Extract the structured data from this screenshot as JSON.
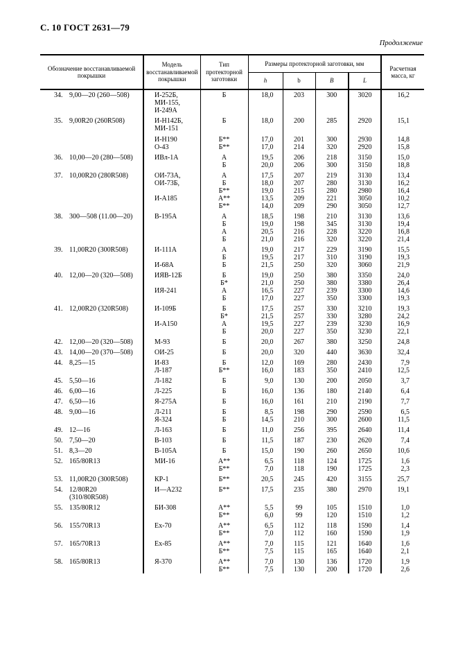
{
  "page": {
    "header": "С. 10 ГОСТ 2631—79",
    "continuation": "Продолжение"
  },
  "table": {
    "header": {
      "designation": "Обозначение восстанавливаемой покрышки",
      "model": "Модель восстанавливаемой покрышки",
      "type": "Тип протекторной заготовки",
      "dimensions": "Размеры протекторной заготовки, мм",
      "dim_h": "h",
      "dim_b": "b",
      "dim_B": "B",
      "dim_L": "L",
      "mass": "Расчетная масса, кг"
    },
    "items": [
      {
        "num": "34.",
        "designation": [
          "9,00—20 (260—508)"
        ],
        "lines": [
          [
            "И-252Б,",
            "Б",
            "18,0",
            "203",
            "300",
            "3020",
            "16,2"
          ],
          [
            "МИ-155,",
            "",
            "",
            "",
            "",
            "",
            ""
          ],
          [
            "И-249А",
            "",
            "",
            "",
            "",
            "",
            ""
          ]
        ]
      },
      {
        "num": "35.",
        "designation": [
          "9,00R20 (260R508)"
        ],
        "gap_lines": [
          2
        ],
        "lines": [
          [
            "И-Н142Б,",
            "Б",
            "18,0",
            "200",
            "285",
            "2920",
            "15,1"
          ],
          [
            "МИ-151",
            "",
            "",
            "",
            "",
            "",
            ""
          ],
          [
            "И-Н190",
            "Б**",
            "17,0",
            "201",
            "300",
            "2930",
            "14,8"
          ],
          [
            "О-43",
            "Б**",
            "17,0",
            "214",
            "320",
            "2920",
            "15,8"
          ]
        ]
      },
      {
        "num": "36.",
        "designation": [
          "10,00—20 (280—508)"
        ],
        "lines": [
          [
            "ИВл-1А",
            "А",
            "19,5",
            "206",
            "218",
            "3150",
            "15,0"
          ],
          [
            "",
            "Б",
            "20,0",
            "206",
            "300",
            "3150",
            "18,8"
          ]
        ]
      },
      {
        "num": "37.",
        "designation": [
          "10,00R20 (280R508)"
        ],
        "lines": [
          [
            "ОИ-73А,",
            "А",
            "17,5",
            "207",
            "219",
            "3130",
            "13,4"
          ],
          [
            "ОИ-73Б,",
            "Б",
            "18,0",
            "207",
            "280",
            "3130",
            "16,2"
          ],
          [
            "",
            "Б**",
            "19,0",
            "215",
            "280",
            "2980",
            "16,4"
          ],
          [
            "И-А185",
            "А**",
            "13,5",
            "209",
            "221",
            "3050",
            "10,2"
          ],
          [
            "",
            "Б**",
            "14,0",
            "209",
            "290",
            "3050",
            "12,7"
          ]
        ]
      },
      {
        "num": "38.",
        "designation": [
          "300—508 (11.00—20)"
        ],
        "lines": [
          [
            "В-195А",
            "А",
            "18,5",
            "198",
            "210",
            "3130",
            "13,6"
          ],
          [
            "",
            "Б",
            "19,0",
            "198",
            "345",
            "3130",
            "19,4"
          ],
          [
            "",
            "А",
            "20,5",
            "216",
            "228",
            "3220",
            "16,8"
          ],
          [
            "",
            "Б",
            "21,0",
            "216",
            "320",
            "3220",
            "21,4"
          ]
        ]
      },
      {
        "num": "39.",
        "designation": [
          "11,00R20 (300R508)"
        ],
        "lines": [
          [
            "И-111А",
            "А",
            "19,0",
            "217",
            "229",
            "3190",
            "15,5"
          ],
          [
            "",
            "Б",
            "19,5",
            "217",
            "310",
            "3190",
            "19,3"
          ],
          [
            "И-68А",
            "Б",
            "21,5",
            "250",
            "320",
            "3060",
            "21,9"
          ]
        ]
      },
      {
        "num": "40.",
        "designation": [
          "12,00—20 (320—508)"
        ],
        "lines": [
          [
            "ИЯВ-12Б",
            "Б",
            "19,0",
            "250",
            "380",
            "3350",
            "24,0"
          ],
          [
            "",
            "Б*",
            "21,0",
            "250",
            "380",
            "3380",
            "26,4"
          ],
          [
            "ИЯ-241",
            "А",
            "16,5",
            "227",
            "239",
            "3300",
            "14,6"
          ],
          [
            "",
            "Б",
            "17,0",
            "227",
            "350",
            "3300",
            "19,3"
          ]
        ]
      },
      {
        "num": "41.",
        "designation": [
          "12,00R20 (320R508)"
        ],
        "lines": [
          [
            "И-109Б",
            "Б",
            "17,5",
            "257",
            "330",
            "3210",
            "19,3"
          ],
          [
            "",
            "Б*",
            "21,5",
            "257",
            "330",
            "3280",
            "24,2"
          ],
          [
            "И-А150",
            "А",
            "19,5",
            "227",
            "239",
            "3230",
            "16,9"
          ],
          [
            "",
            "Б",
            "20,0",
            "227",
            "350",
            "3230",
            "22,1"
          ]
        ]
      },
      {
        "num": "42.",
        "designation": [
          "12,00—20 (320—508)"
        ],
        "lines": [
          [
            "М-93",
            "Б",
            "20,0",
            "267",
            "380",
            "3250",
            "24,8"
          ]
        ]
      },
      {
        "num": "43.",
        "designation": [
          "14,00—20 (370—508)"
        ],
        "lines": [
          [
            "ОИ-25",
            "Б",
            "20,0",
            "320",
            "440",
            "3630",
            "32,4"
          ]
        ]
      },
      {
        "num": "44.",
        "designation": [
          "8,25—15"
        ],
        "lines": [
          [
            "И-83",
            "Б",
            "12,0",
            "169",
            "280",
            "2430",
            "7,9"
          ],
          [
            "Л-187",
            "Б**",
            "16,0",
            "183",
            "350",
            "2410",
            "12,5"
          ]
        ]
      },
      {
        "num": "45.",
        "designation": [
          "5,50—16"
        ],
        "lines": [
          [
            "Л-182",
            "Б",
            "9,0",
            "130",
            "200",
            "2050",
            "3,7"
          ]
        ]
      },
      {
        "num": "46.",
        "designation": [
          "6,00—16"
        ],
        "lines": [
          [
            "Л-225",
            "Б",
            "16,0",
            "136",
            "180",
            "2140",
            "6,4"
          ]
        ]
      },
      {
        "num": "47.",
        "designation": [
          "6,50—16"
        ],
        "lines": [
          [
            "Я-275А",
            "Б",
            "16,0",
            "161",
            "210",
            "2190",
            "7,7"
          ]
        ]
      },
      {
        "num": "48.",
        "designation": [
          "9,00—16"
        ],
        "lines": [
          [
            "Л-211",
            "Б",
            "8,5",
            "198",
            "290",
            "2590",
            "6,5"
          ],
          [
            "Я-324",
            "Б",
            "14,5",
            "210",
            "300",
            "2600",
            "11,5"
          ]
        ]
      },
      {
        "num": "49.",
        "designation": [
          "12—16"
        ],
        "lines": [
          [
            "Л-163",
            "Б",
            "11,0",
            "256",
            "395",
            "2640",
            "11,4"
          ]
        ]
      },
      {
        "num": "50.",
        "designation": [
          "7,50—20"
        ],
        "lines": [
          [
            "В-103",
            "Б",
            "11,5",
            "187",
            "230",
            "2620",
            "7,4"
          ]
        ]
      },
      {
        "num": "51.",
        "designation": [
          "8,3—20"
        ],
        "lines": [
          [
            "В-105А",
            "Б",
            "15,0",
            "190",
            "260",
            "2650",
            "10,6"
          ]
        ]
      },
      {
        "num": "52.",
        "designation": [
          "165/80R13"
        ],
        "lines": [
          [
            "МИ-16",
            "А**",
            "6,5",
            "118",
            "124",
            "1725",
            "1,6"
          ],
          [
            "",
            "Б**",
            "7,0",
            "118",
            "190",
            "1725",
            "2,3"
          ]
        ]
      },
      {
        "num": "53.",
        "designation": [
          "11,00R20 (300R508)"
        ],
        "lines": [
          [
            "КР-1",
            "Б**",
            "20,5",
            "245",
            "420",
            "3155",
            "25,7"
          ]
        ]
      },
      {
        "num": "54.",
        "designation": [
          "12/80R20",
          "(310/80R508)"
        ],
        "lines": [
          [
            "И—А232",
            "Б**",
            "17,5",
            "235",
            "380",
            "2970",
            "19,1"
          ]
        ]
      },
      {
        "num": "55.",
        "designation": [
          "135/80R12"
        ],
        "lines": [
          [
            "БИ-308",
            "А**",
            "5,5",
            "99",
            "105",
            "1510",
            "1,0"
          ],
          [
            "",
            "Б**",
            "6,0",
            "99",
            "120",
            "1510",
            "1,2"
          ]
        ]
      },
      {
        "num": "56.",
        "designation": [
          "155/70R13"
        ],
        "lines": [
          [
            "Ех-70",
            "А**",
            "6,5",
            "112",
            "118",
            "1590",
            "1,4"
          ],
          [
            "",
            "Б**",
            "7,0",
            "112",
            "160",
            "1590",
            "1,9"
          ]
        ]
      },
      {
        "num": "57.",
        "designation": [
          "165/70R13"
        ],
        "lines": [
          [
            "Ех-85",
            "А**",
            "7,0",
            "115",
            "121",
            "1640",
            "1,6"
          ],
          [
            "",
            "Б**",
            "7,5",
            "115",
            "165",
            "1640",
            "2,1"
          ]
        ]
      },
      {
        "num": "58.",
        "designation": [
          "165/80R13"
        ],
        "lines": [
          [
            "Я-370",
            "А**",
            "7,0",
            "130",
            "136",
            "1720",
            "1,9"
          ],
          [
            "",
            "Б**",
            "7,5",
            "130",
            "200",
            "1720",
            "2,6"
          ]
        ]
      }
    ]
  }
}
